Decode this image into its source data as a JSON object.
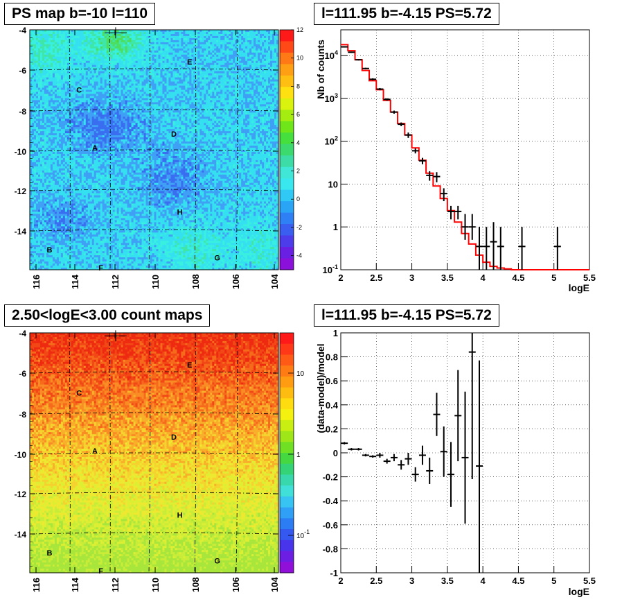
{
  "panels": {
    "tl_title": "PS map b=-10 l=110",
    "tr_title": "l=111.95 b=-4.15 PS=5.72",
    "bl_title": "2.50<logE<3.00 count maps",
    "br_title": "l=111.95 b=-4.15 PS=5.72"
  },
  "chart_data": [
    {
      "type": "heatmap",
      "title": "PS map b=-10 l=110",
      "xlim": [
        116.3,
        103.7
      ],
      "ylim": [
        -16,
        -4
      ],
      "x_ticks": [
        "116",
        "114",
        "112",
        "110",
        "108",
        "106",
        "104"
      ],
      "y_ticks": [
        "-4",
        "-6",
        "-8",
        "-10",
        "-12",
        "-14"
      ],
      "colorbar": {
        "min": -5,
        "max": 12,
        "ticks": [
          "12",
          "10",
          "8",
          "6",
          "4",
          "2",
          "0",
          "-2",
          "-4"
        ]
      },
      "sources": [
        {
          "label": "A",
          "l": 113.0,
          "b": -9.9
        },
        {
          "label": "B",
          "l": 115.3,
          "b": -15.0
        },
        {
          "label": "C",
          "l": 113.8,
          "b": -7.0
        },
        {
          "label": "D",
          "l": 109.0,
          "b": -9.2
        },
        {
          "label": "E",
          "l": 108.2,
          "b": -5.6
        },
        {
          "label": "F",
          "l": 112.7,
          "b": -15.9
        },
        {
          "label": "G",
          "l": 106.8,
          "b": -15.4
        },
        {
          "label": "H",
          "l": 108.7,
          "b": -13.1
        }
      ],
      "marker": {
        "l": 111.95,
        "b": -4.15
      }
    },
    {
      "type": "line",
      "title": "l=111.95 b=-4.15 PS=5.72",
      "xlabel": "logE",
      "ylabel": "Nb of counts",
      "xlim": [
        2,
        5.5
      ],
      "ylim": [
        0.1,
        40000
      ],
      "yscale": "log",
      "x_ticks": [
        "2",
        "2.5",
        "3",
        "3.5",
        "4",
        "4.5",
        "5",
        "5.5"
      ],
      "y_ticks": [
        "10^4",
        "10^3",
        "10^2",
        "10",
        "1",
        "10^-1"
      ],
      "grid": true,
      "model": {
        "color": "#ff0000",
        "edges": [
          2.0,
          2.1,
          2.2,
          2.3,
          2.4,
          2.5,
          2.6,
          2.7,
          2.8,
          2.9,
          3.0,
          3.1,
          3.2,
          3.3,
          3.4,
          3.5,
          3.6,
          3.7,
          3.8,
          3.9,
          4.0,
          4.1,
          4.2,
          4.3,
          4.4,
          5.5
        ],
        "values": [
          18000,
          13000,
          8000,
          4500,
          2600,
          1600,
          900,
          480,
          260,
          140,
          70,
          36,
          18,
          9,
          4.6,
          2.4,
          1.3,
          0.7,
          0.4,
          0.22,
          0.15,
          0.12,
          0.11,
          0.105,
          0.1
        ]
      },
      "data": [
        {
          "x": 2.05,
          "y": 16000,
          "ylo": 15500,
          "yhi": 16500
        },
        {
          "x": 2.15,
          "y": 12000,
          "ylo": 11600,
          "yhi": 12400
        },
        {
          "x": 2.25,
          "y": 8000,
          "ylo": 7700,
          "yhi": 8300
        },
        {
          "x": 2.35,
          "y": 5000,
          "ylo": 4800,
          "yhi": 5200
        },
        {
          "x": 2.45,
          "y": 2800,
          "ylo": 2650,
          "yhi": 2950
        },
        {
          "x": 2.55,
          "y": 1650,
          "ylo": 1550,
          "yhi": 1750
        },
        {
          "x": 2.65,
          "y": 950,
          "ylo": 890,
          "yhi": 1010
        },
        {
          "x": 2.75,
          "y": 480,
          "ylo": 440,
          "yhi": 520
        },
        {
          "x": 2.85,
          "y": 250,
          "ylo": 225,
          "yhi": 275
        },
        {
          "x": 2.95,
          "y": 140,
          "ylo": 120,
          "yhi": 160
        },
        {
          "x": 3.05,
          "y": 60,
          "ylo": 52,
          "yhi": 68
        },
        {
          "x": 3.15,
          "y": 35,
          "ylo": 29,
          "yhi": 41
        },
        {
          "x": 3.25,
          "y": 16,
          "ylo": 12,
          "yhi": 20
        },
        {
          "x": 3.35,
          "y": 15,
          "ylo": 11,
          "yhi": 19
        },
        {
          "x": 3.45,
          "y": 6,
          "ylo": 4,
          "yhi": 8
        },
        {
          "x": 3.55,
          "y": 2.3,
          "ylo": 1.5,
          "yhi": 3.1
        },
        {
          "x": 3.65,
          "y": 2.3,
          "ylo": 1.5,
          "yhi": 3.1
        },
        {
          "x": 3.75,
          "y": 1.0,
          "ylo": 0.5,
          "yhi": 2.0
        },
        {
          "x": 3.85,
          "y": 1.0,
          "ylo": 0.5,
          "yhi": 2.0
        },
        {
          "x": 3.95,
          "y": 0.35,
          "ylo": 0.1,
          "yhi": 1.0
        },
        {
          "x": 4.05,
          "y": 0.35,
          "ylo": 0.1,
          "yhi": 1.0
        },
        {
          "x": 4.15,
          "y": 0.45,
          "ylo": 0.1,
          "yhi": 1.3
        },
        {
          "x": 4.25,
          "y": 0.35,
          "ylo": 0.1,
          "yhi": 1.0
        },
        {
          "x": 4.55,
          "y": 0.35,
          "ylo": 0.1,
          "yhi": 1.0
        },
        {
          "x": 5.05,
          "y": 0.35,
          "ylo": 0.1,
          "yhi": 1.0
        }
      ]
    },
    {
      "type": "heatmap",
      "title": "2.50<logE<3.00 count maps",
      "xlim": [
        116.3,
        103.7
      ],
      "ylim": [
        -16,
        -4
      ],
      "x_ticks": [
        "116",
        "114",
        "112",
        "110",
        "108",
        "106",
        "104"
      ],
      "y_ticks": [
        "-4",
        "-6",
        "-8",
        "-10",
        "-12",
        "-14"
      ],
      "colorbar": {
        "scale": "log",
        "ticks": [
          "10",
          "1",
          "10^-1"
        ]
      },
      "sources": [
        {
          "label": "A",
          "l": 113.0,
          "b": -9.9
        },
        {
          "label": "B",
          "l": 115.3,
          "b": -15.0
        },
        {
          "label": "C",
          "l": 113.8,
          "b": -7.0
        },
        {
          "label": "D",
          "l": 109.0,
          "b": -9.2
        },
        {
          "label": "E",
          "l": 108.2,
          "b": -5.6
        },
        {
          "label": "F",
          "l": 112.7,
          "b": -15.9
        },
        {
          "label": "G",
          "l": 106.8,
          "b": -15.4
        },
        {
          "label": "H",
          "l": 108.7,
          "b": -13.1
        }
      ],
      "marker": {
        "l": 111.95,
        "b": -4.15
      }
    },
    {
      "type": "scatter",
      "title": "l=111.95 b=-4.15 PS=5.72",
      "xlabel": "logE",
      "ylabel": "(data-model)/model",
      "xlim": [
        2,
        5.5
      ],
      "ylim": [
        -1,
        1
      ],
      "x_ticks": [
        "2",
        "2.5",
        "3",
        "3.5",
        "4",
        "4.5",
        "5",
        "5.5"
      ],
      "y_ticks": [
        "1",
        "0.8",
        "0.6",
        "0.4",
        "0.2",
        "0",
        "-0.2",
        "-0.4",
        "-0.6",
        "-0.8",
        "-1"
      ],
      "grid": true,
      "data": [
        {
          "x": 2.05,
          "y": 0.08,
          "ylo": 0.07,
          "yhi": 0.09
        },
        {
          "x": 2.15,
          "y": 0.03,
          "ylo": 0.02,
          "yhi": 0.04
        },
        {
          "x": 2.25,
          "y": 0.03,
          "ylo": 0.02,
          "yhi": 0.04
        },
        {
          "x": 2.35,
          "y": -0.02,
          "ylo": -0.03,
          "yhi": -0.01
        },
        {
          "x": 2.45,
          "y": -0.03,
          "ylo": -0.04,
          "yhi": -0.02
        },
        {
          "x": 2.55,
          "y": -0.02,
          "ylo": -0.04,
          "yhi": 0.0
        },
        {
          "x": 2.65,
          "y": -0.07,
          "ylo": -0.09,
          "yhi": -0.05
        },
        {
          "x": 2.75,
          "y": -0.04,
          "ylo": -0.07,
          "yhi": -0.01
        },
        {
          "x": 2.85,
          "y": -0.1,
          "ylo": -0.14,
          "yhi": -0.06
        },
        {
          "x": 2.95,
          "y": -0.05,
          "ylo": -0.1,
          "yhi": 0.0
        },
        {
          "x": 3.05,
          "y": -0.18,
          "ylo": -0.24,
          "yhi": -0.12
        },
        {
          "x": 3.15,
          "y": -0.02,
          "ylo": -0.1,
          "yhi": 0.06
        },
        {
          "x": 3.25,
          "y": -0.15,
          "ylo": -0.26,
          "yhi": -0.04
        },
        {
          "x": 3.35,
          "y": 0.32,
          "ylo": 0.14,
          "yhi": 0.5
        },
        {
          "x": 3.45,
          "y": 0.01,
          "ylo": -0.2,
          "yhi": 0.22
        },
        {
          "x": 3.55,
          "y": -0.18,
          "ylo": -0.45,
          "yhi": 0.09
        },
        {
          "x": 3.65,
          "y": 0.31,
          "ylo": -0.07,
          "yhi": 0.69
        },
        {
          "x": 3.75,
          "y": -0.04,
          "ylo": -0.59,
          "yhi": 0.51
        },
        {
          "x": 3.85,
          "y": 0.84,
          "ylo": -0.22,
          "yhi": 1.0
        },
        {
          "x": 3.95,
          "y": -0.11,
          "ylo": -1.0,
          "yhi": 0.77
        }
      ]
    }
  ]
}
